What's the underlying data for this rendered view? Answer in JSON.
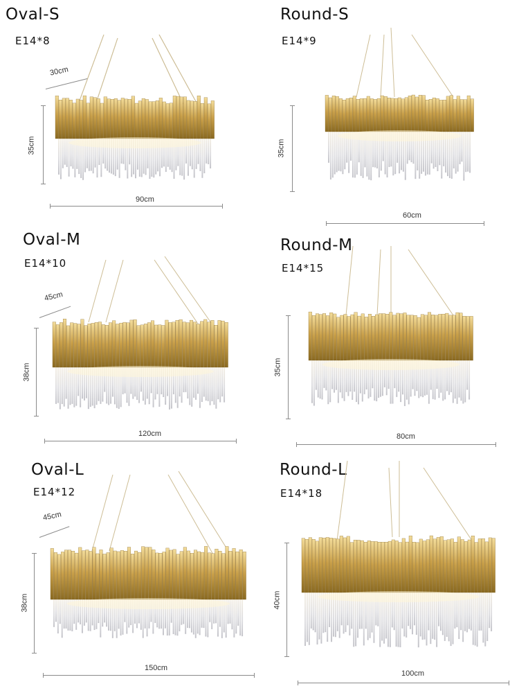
{
  "items": [
    {
      "name": "Oval-S",
      "bulbs": "E14*8",
      "depth": "30cm",
      "height": "35cm",
      "width": "90cm"
    },
    {
      "name": "Round-S",
      "bulbs": "E14*9",
      "height": "35cm",
      "width": "60cm"
    },
    {
      "name": "Oval-M",
      "bulbs": "E14*10",
      "depth": "45cm",
      "height": "38cm",
      "width": "120cm"
    },
    {
      "name": "Round-M",
      "bulbs": "E14*15",
      "height": "35cm",
      "width": "80cm"
    },
    {
      "name": "Oval-L",
      "bulbs": "E14*12",
      "depth": "45cm",
      "height": "38cm",
      "width": "150cm"
    },
    {
      "name": "Round-L",
      "bulbs": "E14*18",
      "height": "40cm",
      "width": "100cm"
    }
  ],
  "colors": {
    "gold": "#c9a04a",
    "gold_dark": "#8a6a22",
    "gold_light": "#f3dc9a",
    "crystal": "#d8d8dc",
    "line": "#8a8a8a"
  }
}
